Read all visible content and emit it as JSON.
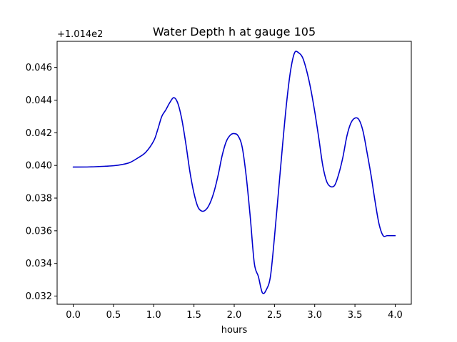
{
  "chart_data": {
    "type": "line",
    "title": "Water Depth h at gauge 105",
    "xlabel": "hours",
    "ylabel": "",
    "y_offset_label": "+1.014e2",
    "y_offset": 101.4,
    "xlim": [
      -0.2,
      4.2
    ],
    "ylim": [
      0.0315,
      0.0476
    ],
    "x_ticks": [
      0.0,
      0.5,
      1.0,
      1.5,
      2.0,
      2.5,
      3.0,
      3.5,
      4.0
    ],
    "x_tick_labels": [
      "0.0",
      "0.5",
      "1.0",
      "1.5",
      "2.0",
      "2.5",
      "3.0",
      "3.5",
      "4.0"
    ],
    "y_ticks": [
      0.032,
      0.034,
      0.036,
      0.038,
      0.04,
      0.042,
      0.044,
      0.046
    ],
    "y_tick_labels": [
      "0.032",
      "0.034",
      "0.036",
      "0.038",
      "0.040",
      "0.042",
      "0.044",
      "0.046"
    ],
    "grid": false,
    "line_color": "#0000cc",
    "series": [
      {
        "x": [
          0.0,
          0.2,
          0.4,
          0.5,
          0.6,
          0.7,
          0.8,
          0.9,
          1.0,
          1.05,
          1.1,
          1.15,
          1.2,
          1.25,
          1.3,
          1.35,
          1.4,
          1.45,
          1.5,
          1.55,
          1.6,
          1.65,
          1.7,
          1.75,
          1.8,
          1.85,
          1.9,
          1.95,
          2.0,
          2.05,
          2.1,
          2.15,
          2.2,
          2.25,
          2.3,
          2.35,
          2.4,
          2.45,
          2.5,
          2.55,
          2.6,
          2.65,
          2.7,
          2.75,
          2.8,
          2.85,
          2.9,
          2.95,
          3.0,
          3.05,
          3.1,
          3.15,
          3.2,
          3.25,
          3.3,
          3.35,
          3.4,
          3.45,
          3.5,
          3.55,
          3.6,
          3.65,
          3.7,
          3.75,
          3.8,
          3.85,
          3.9,
          3.95,
          4.0
        ],
        "y": [
          0.0399,
          0.03991,
          0.03995,
          0.03998,
          0.04005,
          0.04017,
          0.04045,
          0.0408,
          0.0415,
          0.0422,
          0.043,
          0.0434,
          0.04385,
          0.04415,
          0.0438,
          0.0428,
          0.0413,
          0.0396,
          0.0383,
          0.03745,
          0.0372,
          0.0373,
          0.0377,
          0.0384,
          0.0394,
          0.0406,
          0.04145,
          0.04185,
          0.04195,
          0.0418,
          0.0411,
          0.0393,
          0.0368,
          0.034,
          0.0332,
          0.0322,
          0.0324,
          0.0332,
          0.0356,
          0.0384,
          0.0412,
          0.0438,
          0.0458,
          0.0469,
          0.0469,
          0.0466,
          0.0458,
          0.0447,
          0.0433,
          0.0417,
          0.04,
          0.039,
          0.0387,
          0.0388,
          0.0395,
          0.0405,
          0.0418,
          0.0426,
          0.0429,
          0.0428,
          0.0421,
          0.0408,
          0.0394,
          0.0378,
          0.0364,
          0.0357,
          0.0357,
          0.0357,
          0.0357
        ]
      }
    ]
  }
}
